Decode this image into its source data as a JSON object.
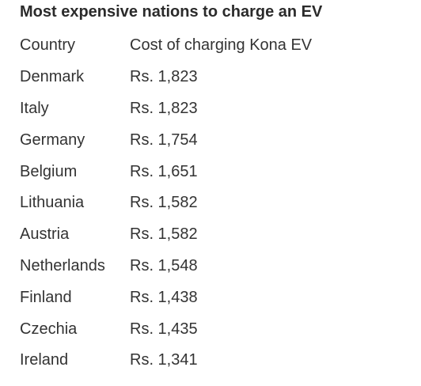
{
  "title": "Most expensive nations to charge an EV",
  "table": {
    "headers": [
      "Country",
      "Cost of charging Kona EV"
    ],
    "rows": [
      [
        "Denmark",
        "Rs. 1,823"
      ],
      [
        "Italy",
        "Rs. 1,823"
      ],
      [
        "Germany",
        "Rs. 1,754"
      ],
      [
        "Belgium",
        "Rs. 1,651"
      ],
      [
        "Lithuania",
        "Rs. 1,582"
      ],
      [
        "Austria",
        "Rs. 1,582"
      ],
      [
        "Netherlands",
        "Rs. 1,548"
      ],
      [
        "Finland",
        "Rs. 1,438"
      ],
      [
        "Czechia",
        "Rs. 1,435"
      ],
      [
        "Ireland",
        "Rs. 1,341"
      ]
    ]
  }
}
